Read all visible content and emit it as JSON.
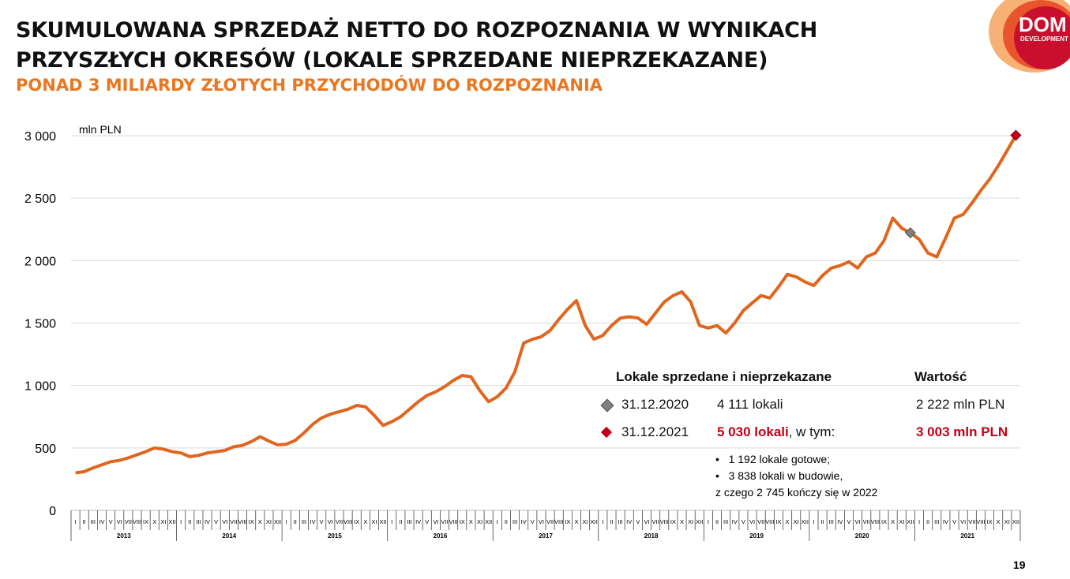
{
  "header": {
    "title_line1": "SKUMULOWANA SPRZEDAŻ NETTO DO ROZPOZNANIA W WYNIKACH",
    "title_line2": "PRZYSZŁYCH OKRESÓW (LOKALE SPRZEDANE NIEPRZEKAZANE)",
    "subtitle": "PONAD 3 MILIARDY ZŁOTYCH PRZYCHODÓW DO ROZPOZNANIA"
  },
  "logo": {
    "line1": "DOM",
    "line2": "DEVELOPMENT"
  },
  "page_number": "19",
  "colors": {
    "line": "#e0661f",
    "accent": "#e87722",
    "highlight": "#c00018",
    "marker_2020": "#808080",
    "marker_2021": "#c00018"
  },
  "chart_data": {
    "type": "line",
    "unit_label": "mln PLN",
    "ylim": [
      0,
      3000
    ],
    "y_ticks": [
      0,
      500,
      1000,
      1500,
      2000,
      2500,
      3000
    ],
    "y_tick_labels": [
      "0",
      "500",
      "1 000",
      "1 500",
      "2 000",
      "2 500",
      "3 000"
    ],
    "grid": "horizontal",
    "months": [
      "I",
      "II",
      "III",
      "IV",
      "V",
      "VI",
      "VII",
      "VIII",
      "IX",
      "X",
      "XI",
      "XII"
    ],
    "years": [
      "2013",
      "2014",
      "2015",
      "2016",
      "2017",
      "2018",
      "2019",
      "2020",
      "2021"
    ],
    "series": [
      {
        "values": [
          300,
          310,
          340,
          365,
          390,
          400,
          420,
          445,
          470,
          500,
          490,
          470,
          460,
          430,
          440,
          460,
          470,
          480,
          510,
          520,
          550,
          590,
          555,
          525,
          530,
          560,
          620,
          690,
          740,
          770,
          790,
          810,
          840,
          830,
          760,
          680,
          710,
          750,
          810,
          870,
          920,
          950,
          990,
          1040,
          1080,
          1070,
          960,
          870,
          910,
          980,
          1110,
          1340,
          1370,
          1390,
          1440,
          1530,
          1610,
          1680,
          1480,
          1370,
          1400,
          1480,
          1540,
          1550,
          1540,
          1490,
          1580,
          1670,
          1720,
          1750,
          1670,
          1480,
          1460,
          1480,
          1420,
          1500,
          1600,
          1660,
          1720,
          1700,
          1790,
          1890,
          1870,
          1830,
          1800,
          1880,
          1940,
          1960,
          1990,
          1940,
          2030,
          2060,
          2160,
          2340,
          2260,
          2222,
          2170,
          2060,
          2030,
          2180,
          2340,
          2370,
          2460,
          2560,
          2650,
          2760,
          2880,
          3003
        ]
      }
    ],
    "markers": [
      {
        "x": "XII 2020",
        "value": 2222
      },
      {
        "x": "XII 2021",
        "value": 3003
      }
    ]
  },
  "legend": {
    "header_left": "Lokale sprzedane i nieprzekazane",
    "header_right": "Wartość",
    "row1_date": "31.12.2020",
    "row1_count": "4 111 lokali",
    "row1_value": "2 222 mln PLN",
    "row2_date": "31.12.2021",
    "row2_count": "5 030 lokali",
    "row2_count_suffix": ", w tym:",
    "row2_value": "3 003 mln PLN",
    "bullets": [
      "1 192 lokale gotowe;",
      "3 838 lokali w budowie,"
    ],
    "note": "z czego 2 745 kończy się w 2022"
  }
}
